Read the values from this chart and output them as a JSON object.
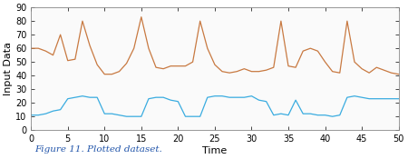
{
  "title": "",
  "xlabel": "Time",
  "ylabel": "Input Data",
  "xlim": [
    0,
    50
  ],
  "ylim": [
    0,
    90
  ],
  "xticks": [
    0,
    5,
    10,
    15,
    20,
    25,
    30,
    35,
    40,
    45,
    50
  ],
  "yticks": [
    0,
    10,
    20,
    30,
    40,
    50,
    60,
    70,
    80,
    90
  ],
  "orange_color": "#C87941",
  "blue_color": "#3AACE0",
  "caption": "Figure 11. Plotted dataset.",
  "caption_color": "#2255AA",
  "linewidth": 0.9,
  "orange_x": [
    0,
    1,
    2,
    3,
    4,
    5,
    6,
    7,
    8,
    9,
    10,
    11,
    12,
    13,
    14,
    15,
    16,
    17,
    18,
    19,
    20,
    21,
    22,
    23,
    24,
    25,
    26,
    27,
    28,
    29,
    30,
    31,
    32,
    33,
    34,
    35,
    36,
    37,
    38,
    39,
    40,
    41,
    42,
    43,
    44,
    45,
    46,
    47,
    48,
    49,
    50
  ],
  "orange_y": [
    60,
    60,
    58,
    55,
    70,
    51,
    52,
    80,
    62,
    48,
    41,
    41,
    43,
    49,
    60,
    83,
    60,
    46,
    45,
    47,
    47,
    47,
    50,
    80,
    60,
    48,
    43,
    42,
    43,
    45,
    43,
    43,
    44,
    46,
    80,
    47,
    46,
    58,
    60,
    58,
    50,
    43,
    42,
    80,
    50,
    45,
    42,
    46,
    44,
    42,
    41
  ],
  "blue_x": [
    0,
    1,
    2,
    3,
    4,
    5,
    6,
    7,
    8,
    9,
    10,
    11,
    12,
    13,
    14,
    15,
    16,
    17,
    18,
    19,
    20,
    21,
    22,
    23,
    24,
    25,
    26,
    27,
    28,
    29,
    30,
    31,
    32,
    33,
    34,
    35,
    36,
    37,
    38,
    39,
    40,
    41,
    42,
    43,
    44,
    45,
    46,
    47,
    48,
    49,
    50
  ],
  "blue_y": [
    11,
    11,
    12,
    14,
    15,
    23,
    24,
    25,
    24,
    24,
    12,
    12,
    11,
    10,
    10,
    10,
    23,
    24,
    24,
    22,
    21,
    10,
    10,
    10,
    24,
    25,
    25,
    24,
    24,
    24,
    25,
    22,
    21,
    11,
    12,
    11,
    22,
    12,
    12,
    11,
    11,
    10,
    11,
    24,
    25,
    24,
    23,
    23,
    23,
    23,
    23
  ],
  "figsize": [
    4.5,
    1.75
  ],
  "dpi": 100,
  "tick_fontsize": 7,
  "label_fontsize": 8
}
